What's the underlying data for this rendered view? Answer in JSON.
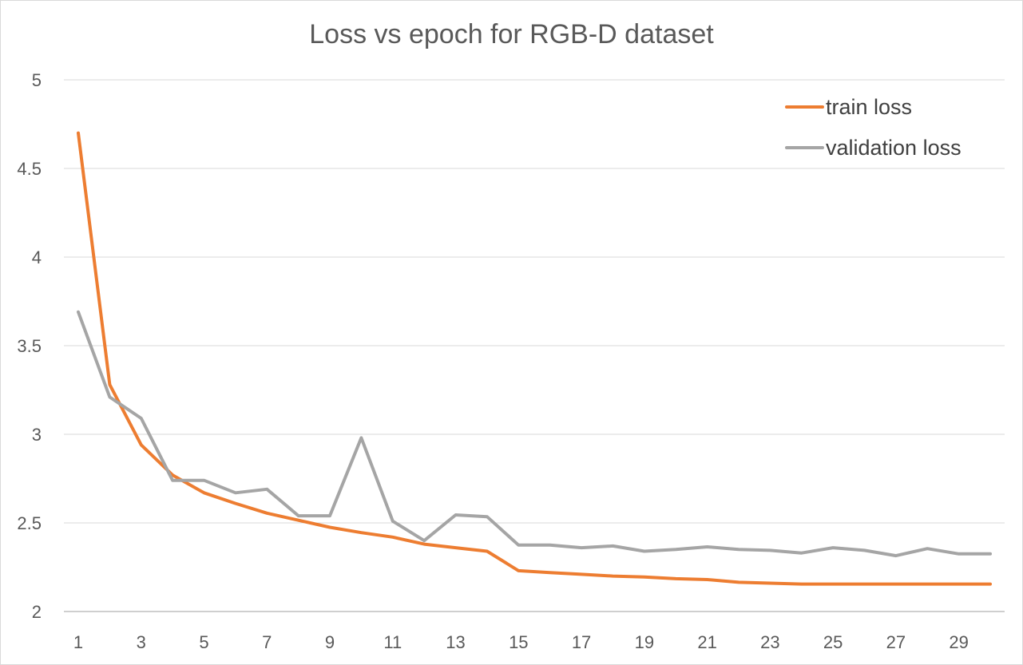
{
  "chart_data": {
    "type": "line",
    "title": "Loss vs epoch for RGB-D dataset",
    "xlabel": "",
    "ylabel": "",
    "x": [
      1,
      2,
      3,
      4,
      5,
      6,
      7,
      8,
      9,
      10,
      11,
      12,
      13,
      14,
      15,
      16,
      17,
      18,
      19,
      20,
      21,
      22,
      23,
      24,
      25,
      26,
      27,
      28,
      29,
      30
    ],
    "x_tick_labels": [
      "1",
      "3",
      "5",
      "7",
      "9",
      "11",
      "13",
      "15",
      "17",
      "19",
      "21",
      "23",
      "25",
      "27",
      "29"
    ],
    "ylim": [
      2,
      5
    ],
    "y_ticks": [
      2,
      2.5,
      3,
      3.5,
      4,
      4.5,
      5
    ],
    "y_tick_labels": [
      "2",
      "2.5",
      "3",
      "3.5",
      "4",
      "4.5",
      "5"
    ],
    "grid": true,
    "legend_position": "top-right",
    "series": [
      {
        "name": "train loss",
        "color": "#ed7d31",
        "values": [
          4.7,
          3.28,
          2.94,
          2.77,
          2.67,
          2.61,
          2.555,
          2.515,
          2.475,
          2.445,
          2.42,
          2.38,
          2.36,
          2.34,
          2.23,
          2.22,
          2.21,
          2.2,
          2.195,
          2.185,
          2.18,
          2.165,
          2.16,
          2.155,
          2.155,
          2.155,
          2.155,
          2.155,
          2.155,
          2.155
        ]
      },
      {
        "name": "validation loss",
        "color": "#a5a5a5",
        "values": [
          3.69,
          3.21,
          3.09,
          2.74,
          2.74,
          2.67,
          2.69,
          2.54,
          2.54,
          2.98,
          2.51,
          2.4,
          2.545,
          2.535,
          2.375,
          2.375,
          2.36,
          2.37,
          2.34,
          2.35,
          2.365,
          2.35,
          2.345,
          2.33,
          2.36,
          2.345,
          2.315,
          2.355,
          2.325,
          2.325
        ]
      }
    ]
  }
}
